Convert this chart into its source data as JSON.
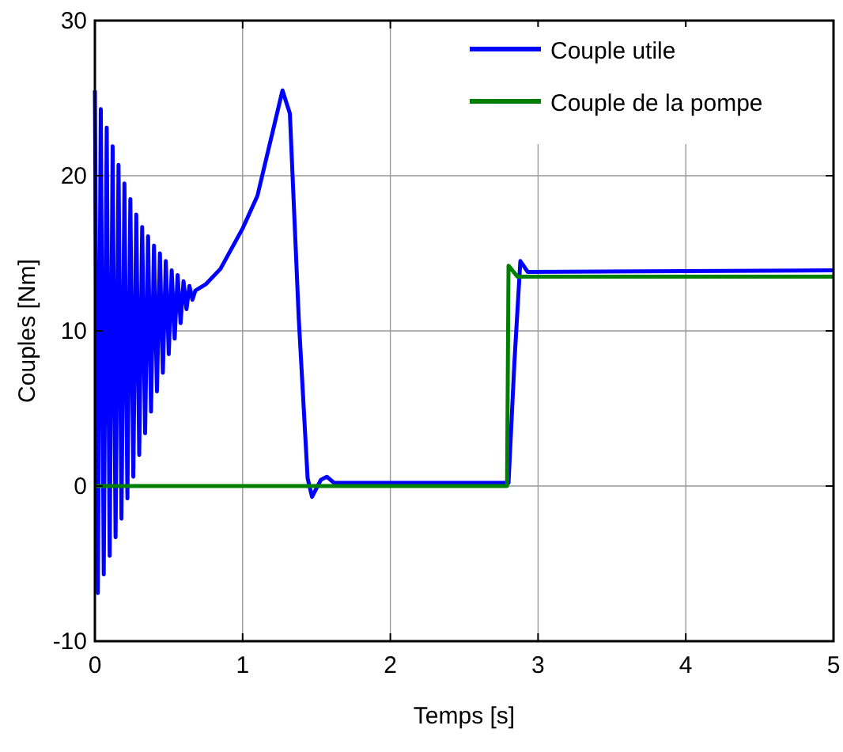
{
  "chart_data": {
    "type": "line",
    "xlabel": "Temps [s]",
    "ylabel": "Couples [Nm]",
    "xlim": [
      0,
      5
    ],
    "ylim": [
      -10,
      30
    ],
    "xticks": [
      0,
      1,
      2,
      3,
      4,
      5
    ],
    "yticks": [
      -10,
      0,
      10,
      20,
      30
    ],
    "grid": true,
    "legend": "top right",
    "series": [
      {
        "name": "Couple utile",
        "color": "#0000ff",
        "x": [
          0,
          0.02,
          0.04,
          0.06,
          0.08,
          0.1,
          0.12,
          0.14,
          0.16,
          0.18,
          0.2,
          0.22,
          0.24,
          0.26,
          0.28,
          0.3,
          0.32,
          0.34,
          0.36,
          0.38,
          0.4,
          0.42,
          0.44,
          0.46,
          0.48,
          0.5,
          0.52,
          0.54,
          0.56,
          0.58,
          0.6,
          0.62,
          0.64,
          0.66,
          0.68,
          0.75,
          0.85,
          1.0,
          1.1,
          1.2,
          1.27,
          1.32,
          1.38,
          1.44,
          1.47,
          1.53,
          1.57,
          1.62,
          2.8,
          2.84,
          2.88,
          2.93,
          5
        ],
        "values": [
          25.5,
          -6.9,
          24.3,
          -5.7,
          23.1,
          -4.5,
          21.9,
          -3.3,
          20.7,
          -2.1,
          19.5,
          -0.8,
          18.5,
          0.6,
          17.5,
          2,
          16.7,
          3.4,
          16.1,
          4.8,
          15.5,
          6.1,
          15,
          7.3,
          14.5,
          8.5,
          13.9,
          9.5,
          13.6,
          10.5,
          13.2,
          11.4,
          12.9,
          12,
          12.6,
          13,
          14,
          16.6,
          18.7,
          22.7,
          25.5,
          24,
          10.8,
          0.5,
          -0.7,
          0.4,
          0.6,
          0.2,
          0.2,
          8,
          14.5,
          13.8,
          13.9
        ]
      },
      {
        "name": "Couple de la pompe",
        "color": "#008000",
        "x": [
          0,
          2.79,
          2.8,
          2.86,
          5
        ],
        "values": [
          0,
          0,
          14.2,
          13.5,
          13.5
        ]
      }
    ]
  }
}
